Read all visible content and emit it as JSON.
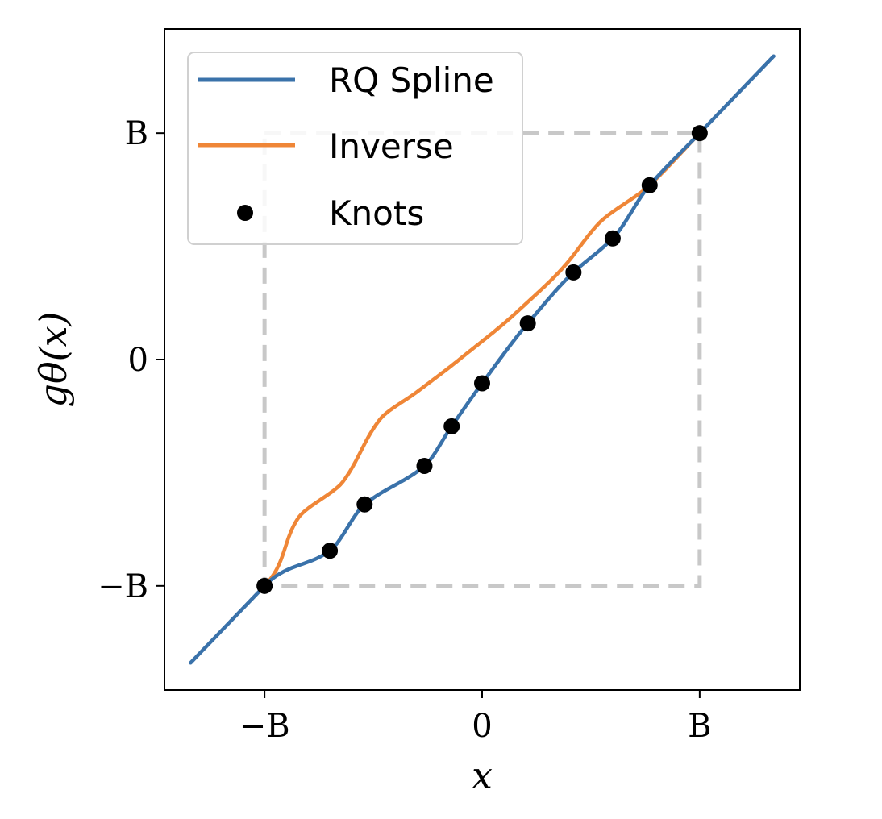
{
  "chart_data": {
    "type": "line",
    "xlabel": "x",
    "ylabel": "gθ(x)",
    "xlim": [
      -1.46,
      1.46
    ],
    "ylim": [
      -1.46,
      1.46
    ],
    "B": 1,
    "x_ticks": [
      {
        "value": -1,
        "label": "−B"
      },
      {
        "value": 0,
        "label": "0"
      },
      {
        "value": 1,
        "label": "B"
      }
    ],
    "y_ticks": [
      {
        "value": -1,
        "label": "−B"
      },
      {
        "value": 0,
        "label": "0"
      },
      {
        "value": 1,
        "label": "B"
      }
    ],
    "grid": false,
    "legend": {
      "placement": "top-left",
      "entries": [
        "RQ Spline",
        "Inverse",
        "Knots"
      ]
    },
    "colors": {
      "spline": "#3a72aa",
      "inverse": "#ef8637",
      "knots": "#000000",
      "box": "#c8c8c8"
    },
    "knots": [
      {
        "x": -1.0,
        "y": -1.0
      },
      {
        "x": -0.7,
        "y": -0.845
      },
      {
        "x": -0.54,
        "y": -0.64
      },
      {
        "x": -0.265,
        "y": -0.47
      },
      {
        "x": -0.14,
        "y": -0.295
      },
      {
        "x": 0.0,
        "y": -0.105
      },
      {
        "x": 0.21,
        "y": 0.16
      },
      {
        "x": 0.42,
        "y": 0.385
      },
      {
        "x": 0.6,
        "y": 0.535
      },
      {
        "x": 0.77,
        "y": 0.77
      },
      {
        "x": 1.0,
        "y": 1.0
      }
    ],
    "extrapolation_range": [
      -1.34,
      1.34
    ]
  }
}
